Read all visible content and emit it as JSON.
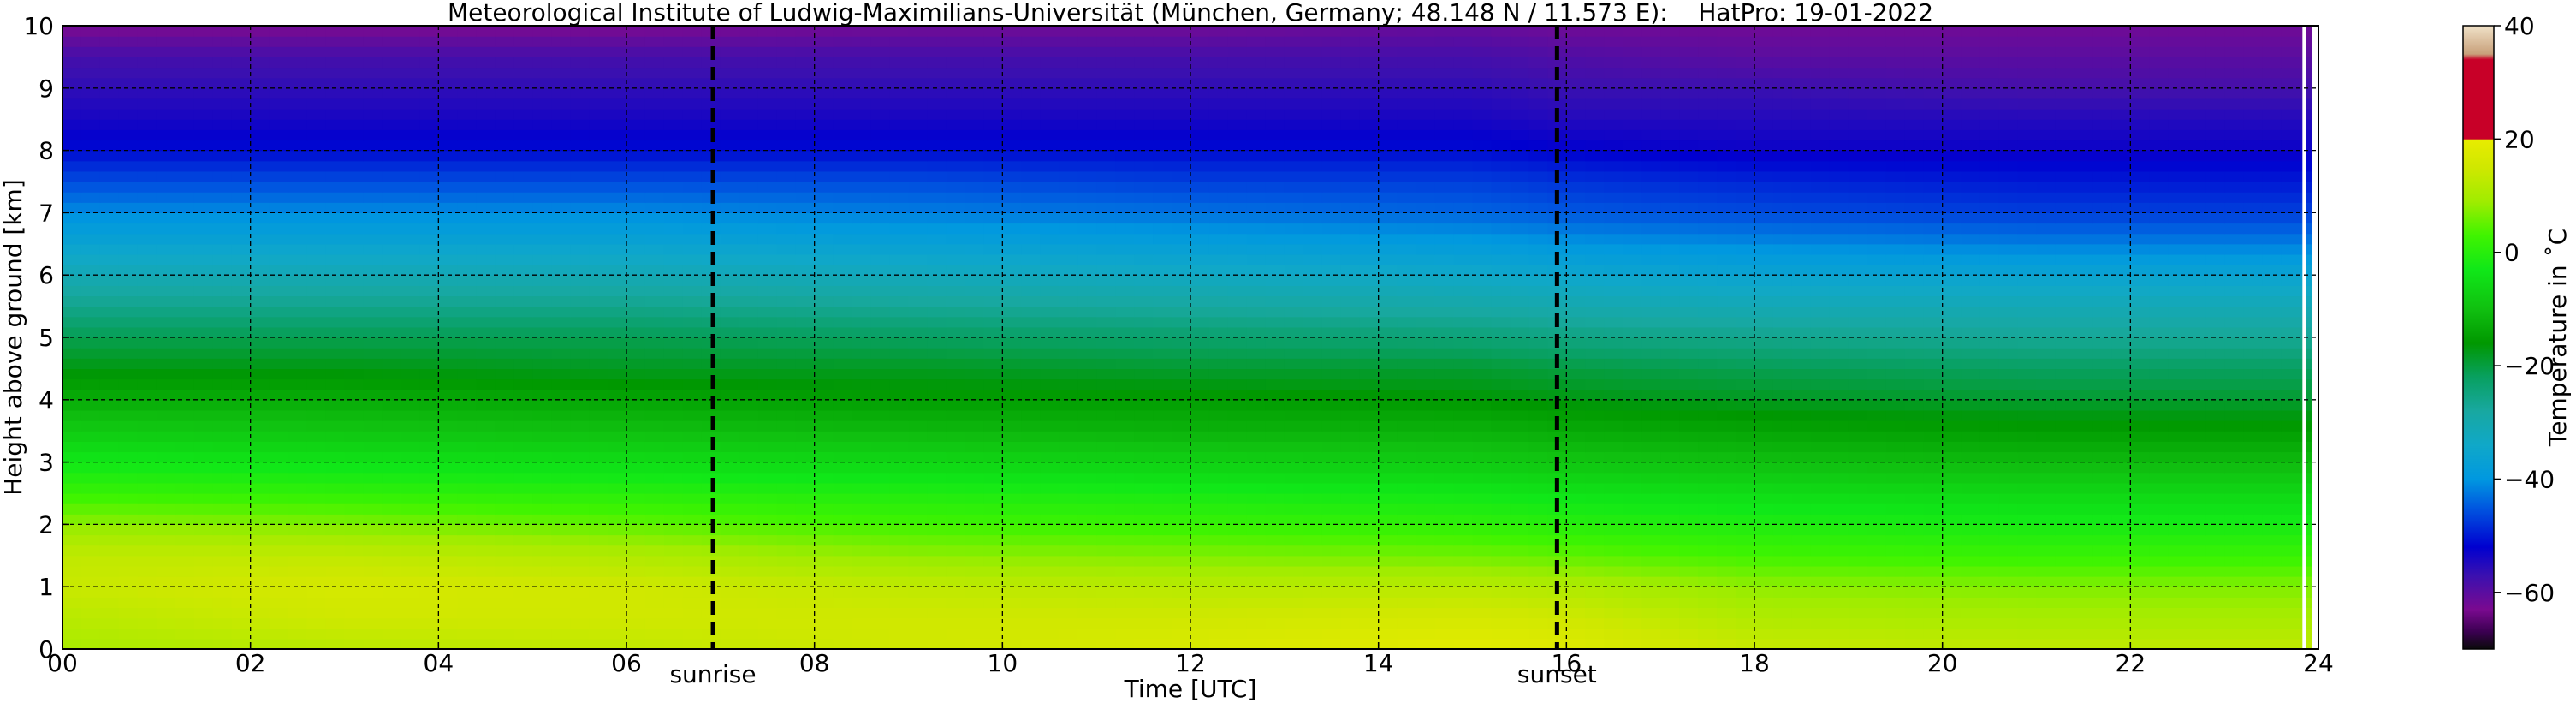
{
  "chart_data": {
    "type": "heatmap",
    "title": "Meteorological Institute of Ludwig-Maximilians-Universität (München, Germany; 48.148 N / 11.573 E):    HatPro: 19-01-2022",
    "xlabel": "Time [UTC]",
    "ylabel": "Height above ground [km]",
    "xlim": [
      0,
      24
    ],
    "ylim": [
      0,
      10
    ],
    "x_ticks": [
      "00",
      "02",
      "04",
      "06",
      "08",
      "10",
      "12",
      "14",
      "16",
      "18",
      "20",
      "22",
      "24"
    ],
    "y_ticks": [
      "0",
      "1",
      "2",
      "3",
      "4",
      "5",
      "6",
      "7",
      "8",
      "9",
      "10"
    ],
    "grid": true,
    "events": [
      {
        "label": "sunrise",
        "time": 6.92
      },
      {
        "label": "sunset",
        "time": 15.9
      }
    ],
    "colorbar": {
      "label": "Temperature in ˚C",
      "range": [
        -70,
        40
      ],
      "ticks": [
        "40",
        "20",
        "0",
        "−20",
        "−40",
        "−60"
      ],
      "tick_values": [
        40,
        20,
        0,
        -20,
        -40,
        -60
      ],
      "colors": [
        {
          "value": -70,
          "color": "#0a0a0a"
        },
        {
          "value": -67,
          "color": "#3a0050"
        },
        {
          "value": -63,
          "color": "#7a0a90"
        },
        {
          "value": -57,
          "color": "#3a10b0"
        },
        {
          "value": -52,
          "color": "#0000d0"
        },
        {
          "value": -45,
          "color": "#0058e0"
        },
        {
          "value": -40,
          "color": "#0098e0"
        },
        {
          "value": -34,
          "color": "#10a8c8"
        },
        {
          "value": -28,
          "color": "#18a8a0"
        },
        {
          "value": -22,
          "color": "#08a060"
        },
        {
          "value": -16,
          "color": "#009800"
        },
        {
          "value": -10,
          "color": "#10c010"
        },
        {
          "value": -3,
          "color": "#10e818"
        },
        {
          "value": 3,
          "color": "#40f400"
        },
        {
          "value": 9,
          "color": "#a0ec00"
        },
        {
          "value": 15,
          "color": "#d0e800"
        },
        {
          "value": 19.9,
          "color": "#e8ec00"
        },
        {
          "value": 20,
          "color": "#c80028"
        },
        {
          "value": 34,
          "color": "#c80028"
        },
        {
          "value": 35,
          "color": "#c8a07a"
        },
        {
          "value": 40,
          "color": "#f0e2c8"
        }
      ]
    },
    "heights_km": [
      0,
      0.5,
      1,
      1.5,
      2,
      2.5,
      3,
      3.5,
      4,
      4.5,
      5,
      5.5,
      6,
      6.5,
      7,
      7.5,
      8,
      8.5,
      9,
      9.5,
      10
    ],
    "times_utc": [
      0,
      3,
      6,
      9,
      12,
      15,
      16,
      18,
      21,
      24
    ],
    "temperature_c": [
      [
        10,
        12,
        13,
        15,
        17,
        19,
        18,
        14,
        13,
        13
      ],
      [
        12,
        15,
        15,
        15,
        15,
        16,
        15,
        11,
        10,
        10
      ],
      [
        14,
        16,
        15,
        13,
        12,
        12,
        11,
        8,
        7,
        7
      ],
      [
        13,
        13,
        11,
        8,
        7,
        6,
        5,
        3,
        2,
        2
      ],
      [
        8,
        7,
        5,
        3,
        2,
        1,
        0,
        -1,
        -2,
        -2
      ],
      [
        2,
        1,
        0,
        -1,
        -2,
        -3,
        -4,
        -5,
        -6,
        -6
      ],
      [
        -3,
        -4,
        -5,
        -6,
        -7,
        -8,
        -9,
        -10,
        -11,
        -11
      ],
      [
        -8,
        -9,
        -10,
        -11,
        -12,
        -12,
        -13,
        -14,
        -15,
        -15
      ],
      [
        -13,
        -13,
        -14,
        -15,
        -15,
        -16,
        -17,
        -18,
        -19,
        -19
      ],
      [
        -17,
        -17,
        -18,
        -18,
        -19,
        -19,
        -20,
        -21,
        -22,
        -22
      ],
      [
        -21,
        -21,
        -21,
        -22,
        -23,
        -24,
        -25,
        -26,
        -27,
        -27
      ],
      [
        -26,
        -26,
        -26,
        -27,
        -28,
        -29,
        -30,
        -31,
        -31,
        -31
      ],
      [
        -31,
        -31,
        -31,
        -32,
        -33,
        -34,
        -35,
        -36,
        -36,
        -36
      ],
      [
        -36,
        -36,
        -36,
        -37,
        -38,
        -39,
        -40,
        -41,
        -42,
        -42
      ],
      [
        -41,
        -41,
        -41,
        -42,
        -43,
        -44,
        -45,
        -46,
        -47,
        -47
      ],
      [
        -46,
        -46,
        -46,
        -46,
        -47,
        -47,
        -48,
        -49,
        -50,
        -50
      ],
      [
        -51,
        -51,
        -51,
        -51,
        -51,
        -51,
        -52,
        -53,
        -53,
        -53
      ],
      [
        -54,
        -54,
        -54,
        -54,
        -54,
        -54,
        -55,
        -55,
        -55,
        -55
      ],
      [
        -56,
        -56,
        -56,
        -56,
        -56,
        -56,
        -57,
        -57,
        -58,
        -58
      ],
      [
        -58,
        -58,
        -58,
        -58,
        -58,
        -58,
        -59,
        -60,
        -60,
        -60
      ],
      [
        -63,
        -63,
        -63,
        -62,
        -62,
        -61,
        -62,
        -62,
        -62,
        -62
      ]
    ]
  }
}
